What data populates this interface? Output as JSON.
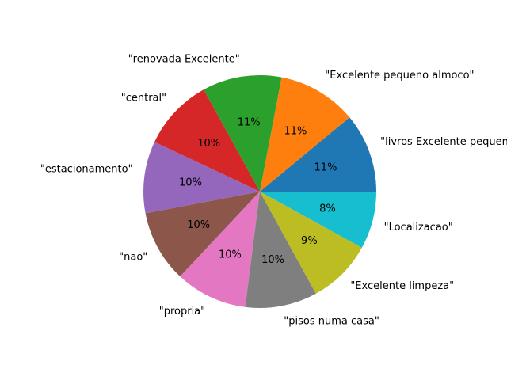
{
  "chart_data": {
    "type": "pie",
    "title": "",
    "categories": [
      "\"livros Excelente pequeno\"",
      "\"Excelente pequeno almoco\"",
      "\"renovada Excelente\"",
      "\"central\"",
      "\"estacionamento\"",
      "\"nao\"",
      "\"propria\"",
      "\"pisos numa casa\"",
      "\"Excelente limpeza\"",
      "\"Localizacao\""
    ],
    "values": [
      11,
      11,
      11,
      10,
      10,
      10,
      10,
      10,
      9,
      8
    ],
    "percent_labels": [
      "11%",
      "11%",
      "11%",
      "10%",
      "10%",
      "10%",
      "10%",
      "10%",
      "9%",
      "8%"
    ],
    "colors": [
      "#1f77b4",
      "#ff7f0e",
      "#2ca02c",
      "#d62728",
      "#9467bd",
      "#8c564b",
      "#e377c2",
      "#7f7f7f",
      "#bcbd22",
      "#17becf"
    ],
    "start_angle_deg": 0,
    "direction": "counterclockwise",
    "legend": "none"
  }
}
